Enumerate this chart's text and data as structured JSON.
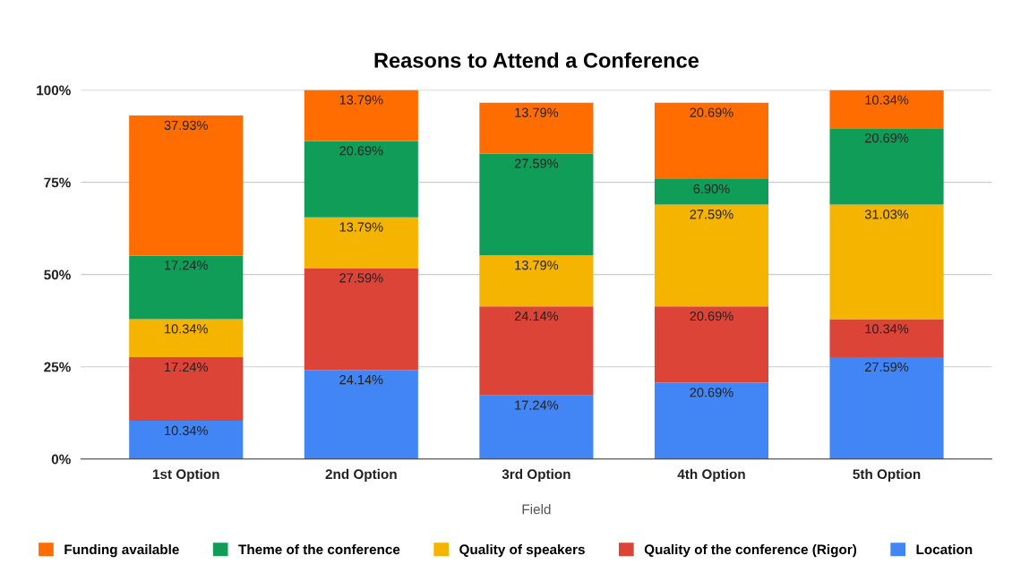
{
  "chart_data": {
    "type": "bar",
    "stacked": true,
    "title": "Reasons to Attend a Conference",
    "xlabel": "Field",
    "categories": [
      "1st Option",
      "2nd Option",
      "3rd Option",
      "4th Option",
      "5th Option"
    ],
    "series": [
      {
        "name": "Location",
        "color": "#4285f4",
        "values": [
          10.34,
          24.14,
          17.24,
          20.69,
          27.59
        ],
        "value_labels": [
          "10.34%",
          "24.14%",
          "17.24%",
          "20.69%",
          "27.59%"
        ]
      },
      {
        "name": "Quality of the conference (Rigor)",
        "color": "#db4437",
        "values": [
          17.24,
          27.59,
          24.14,
          20.69,
          10.34
        ],
        "value_labels": [
          "17.24%",
          "27.59%",
          "24.14%",
          "20.69%",
          "10.34%"
        ]
      },
      {
        "name": "Quality of speakers",
        "color": "#f4b400",
        "values": [
          10.34,
          13.79,
          13.79,
          27.59,
          31.03
        ],
        "value_labels": [
          "10.34%",
          "13.79%",
          "13.79%",
          "27.59%",
          "31.03%"
        ]
      },
      {
        "name": "Theme of the conference",
        "color": "#0f9d58",
        "values": [
          17.24,
          20.69,
          27.59,
          6.9,
          20.69
        ],
        "value_labels": [
          "17.24%",
          "20.69%",
          "27.59%",
          "6.90%",
          "20.69%"
        ]
      },
      {
        "name": "Funding available",
        "color": "#ff6d01",
        "values": [
          37.93,
          13.79,
          13.79,
          20.69,
          10.34
        ],
        "value_labels": [
          "37.93%",
          "13.79%",
          "13.79%",
          "20.69%",
          "10.34%"
        ]
      }
    ],
    "ylim": [
      0,
      100
    ],
    "yticks": [
      {
        "value": 0,
        "label": "0%"
      },
      {
        "value": 25,
        "label": "25%"
      },
      {
        "value": 50,
        "label": "50%"
      },
      {
        "value": 75,
        "label": "75%"
      },
      {
        "value": 100,
        "label": "100%"
      }
    ],
    "grid": "y",
    "legend": "bottom"
  }
}
